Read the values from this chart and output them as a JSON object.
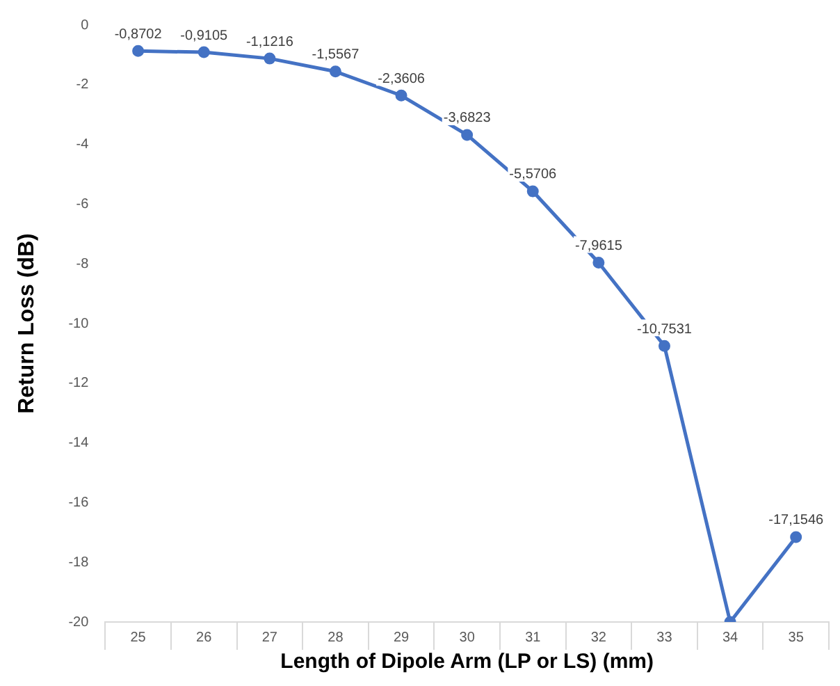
{
  "chart_data": {
    "type": "line",
    "xlabel": "Length of Dipole Arm (LP or LS) (mm)",
    "ylabel": "Return Loss (dB)",
    "categories": [
      "25",
      "26",
      "27",
      "28",
      "29",
      "30",
      "31",
      "32",
      "33",
      "34",
      "35"
    ],
    "series": [
      {
        "color": "#4472c4",
        "values": [
          -0.8702,
          -0.9105,
          -1.1216,
          -1.5567,
          -2.3606,
          -3.6823,
          -5.5706,
          -7.9615,
          -10.7531,
          -20,
          -17.1546
        ],
        "value_labels": [
          "-0,8702",
          "-0,9105",
          "-1,1216",
          "-1,5567",
          "-2,3606",
          "-3,6823",
          "-5,5706",
          "-7,9615",
          "-10,7531",
          null,
          "-17,1546"
        ]
      }
    ],
    "ylim": [
      -20,
      0
    ],
    "yticks": [
      0,
      -2,
      -4,
      -6,
      -8,
      -10,
      -12,
      -14,
      -16,
      -18,
      -20
    ],
    "grid": false,
    "legend": false,
    "marker": "circle",
    "line_style": "solid"
  }
}
